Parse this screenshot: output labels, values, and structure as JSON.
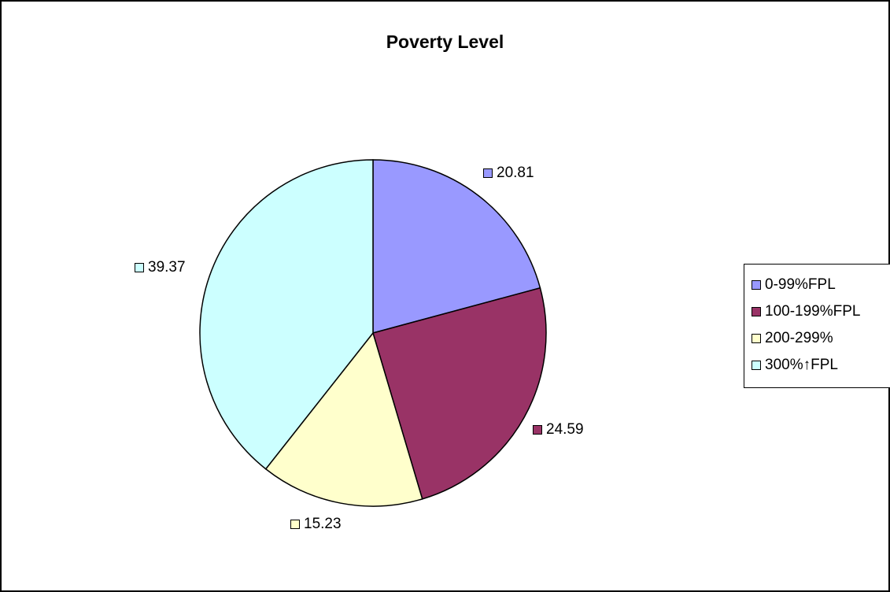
{
  "chart_data": {
    "type": "pie",
    "title": "Poverty Level",
    "categories": [
      "0-99%FPL",
      "100-199%FPL",
      "200-299%",
      "300%↑FPL"
    ],
    "values": [
      20.81,
      24.59,
      15.23,
      39.37
    ],
    "data_labels": [
      "20.81",
      "24.59",
      "15.23",
      "39.37"
    ],
    "colors": [
      "#9999ff",
      "#993366",
      "#ffffcc",
      "#ccffff"
    ],
    "legend_position": "right",
    "start_angle": "12 o'clock, clockwise"
  }
}
